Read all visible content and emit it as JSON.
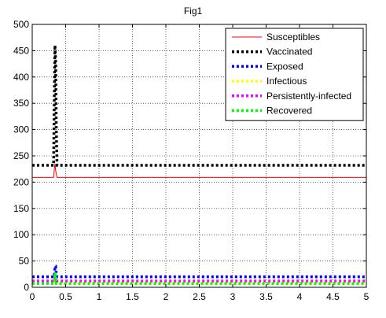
{
  "chart_data": {
    "type": "line",
    "title": "Fig1",
    "xlabel": "",
    "ylabel": "",
    "xlim": [
      0,
      5
    ],
    "ylim": [
      0,
      500
    ],
    "xticks": [
      0,
      0.5,
      1,
      1.5,
      2,
      2.5,
      3,
      3.5,
      4,
      4.5,
      5
    ],
    "xtick_labels": [
      "0",
      "0.5",
      "1",
      "1.5",
      "2",
      "2.5",
      "3",
      "3.5",
      "4",
      "4.5",
      "5"
    ],
    "yticks": [
      0,
      50,
      100,
      150,
      200,
      250,
      300,
      350,
      400,
      450,
      500
    ],
    "ytick_labels": [
      "0",
      "50",
      "100",
      "150",
      "200",
      "250",
      "300",
      "350",
      "400",
      "450",
      "500"
    ],
    "grid": true,
    "legend_position": "top-right",
    "series": [
      {
        "name": "Susceptibles",
        "color": "#ff0000",
        "style": "solid",
        "x": [
          0,
          0.32,
          0.33,
          0.34,
          0.35,
          0.37,
          5
        ],
        "y": [
          209,
          209,
          222,
          235,
          222,
          209,
          209
        ]
      },
      {
        "name": "Vaccinated",
        "color": "#000000",
        "style": "dotted",
        "x": [
          0,
          0.32,
          0.33,
          0.34,
          0.35,
          0.36,
          0.37,
          5
        ],
        "y": [
          232,
          232,
          350,
          460,
          430,
          300,
          232,
          232
        ]
      },
      {
        "name": "Exposed",
        "color": "#0000ff",
        "style": "dotted",
        "x": [
          0,
          0.33,
          0.34,
          0.35,
          0.36,
          0.37,
          5
        ],
        "y": [
          20,
          20,
          40,
          40,
          25,
          20,
          20
        ]
      },
      {
        "name": "Infectious",
        "color": "#ffff00",
        "style": "dotted",
        "x": [
          0,
          0.33,
          0.345,
          0.36,
          5
        ],
        "y": [
          9,
          9,
          20,
          9,
          9
        ]
      },
      {
        "name": "Persistently-infected",
        "color": "#ff00ff",
        "style": "dotted",
        "x": [
          0,
          0.33,
          0.345,
          0.36,
          5
        ],
        "y": [
          12,
          12,
          18,
          12,
          12
        ]
      },
      {
        "name": "Recovered",
        "color": "#00ff00",
        "style": "dotted",
        "x": [
          0,
          0.33,
          0.345,
          0.36,
          5
        ],
        "y": [
          7,
          7,
          28,
          7,
          7
        ]
      }
    ]
  }
}
